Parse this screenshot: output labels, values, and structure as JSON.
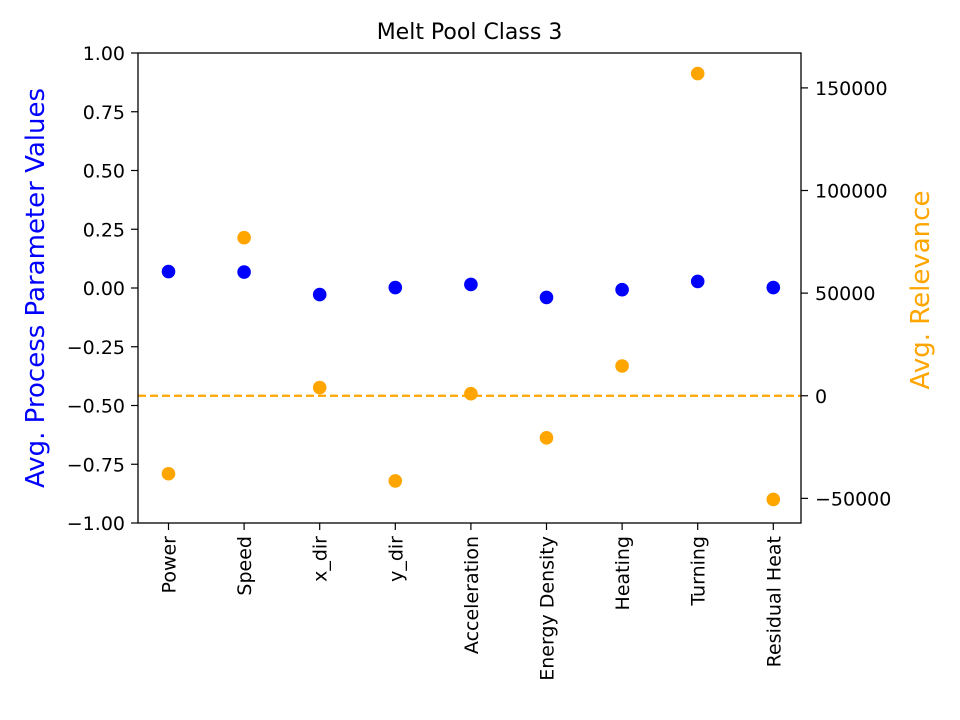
{
  "chart_data": {
    "type": "scatter",
    "title": "Melt Pool Class 3",
    "categories": [
      "Power",
      "Speed",
      "x_dir",
      "y_dir",
      "Acceleration",
      "Energy Density",
      "Heating",
      "Turning",
      "Residual Heat"
    ],
    "left_axis": {
      "label": "Avg. Process Parameter Values",
      "color": "#0000ff",
      "ylim": [
        -1.0,
        1.0
      ],
      "ticks": [
        -1.0,
        -0.75,
        -0.5,
        -0.25,
        0.0,
        0.25,
        0.5,
        0.75,
        1.0
      ],
      "tick_labels": [
        "−1.00",
        "−0.75",
        "−0.50",
        "−0.25",
        "0.00",
        "0.25",
        "0.50",
        "0.75",
        "1.00"
      ]
    },
    "right_axis": {
      "label": "Avg. Relevance",
      "color": "#ffa500",
      "ylim": [
        -62000,
        167000
      ],
      "ticks": [
        -50000,
        0,
        50000,
        100000,
        150000
      ],
      "tick_labels": [
        "−50000",
        "0",
        "50000",
        "100000",
        "150000"
      ]
    },
    "series": [
      {
        "axis": "left",
        "color": "#0000ff",
        "values": [
          0.07,
          0.068,
          -0.028,
          0.002,
          0.015,
          -0.04,
          -0.007,
          0.028,
          0.002
        ]
      },
      {
        "axis": "right",
        "color": "#ffa500",
        "values": [
          -38000,
          77000,
          4000,
          -41500,
          1000,
          -20500,
          14500,
          157000,
          -50500
        ]
      }
    ],
    "reference_line": {
      "axis": "right",
      "value": 0,
      "style": "dashed",
      "color": "#ffa500"
    },
    "grid": false
  }
}
